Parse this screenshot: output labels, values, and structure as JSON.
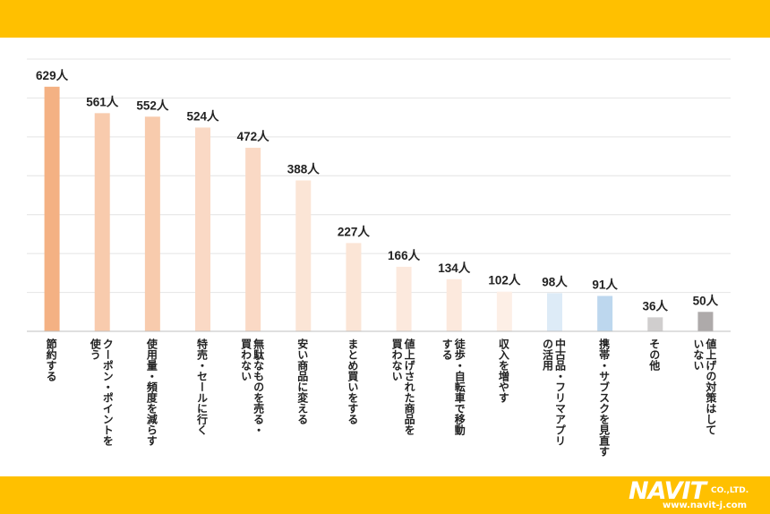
{
  "chart_data": {
    "type": "bar",
    "title": "",
    "xlabel": "",
    "ylabel": "",
    "ylim": [
      0,
      700
    ],
    "grid": true,
    "categories": [
      "節約する",
      "クーポン・ポイントを\n使う",
      "使用量・頻度を減らす",
      "特売・セールに行く",
      "無駄なものを売る・\n買わない",
      "安い商品に変える",
      "まとめ買いをする",
      "値上げされた商品を\n買わない",
      "徒歩・自転車で移動\nする",
      "収入を増やす",
      "中古品・フリマアプリ\nの活用",
      "携帯・サブスクを見直す",
      "その他",
      "値上げの対策はして\nいない"
    ],
    "values": [
      629,
      561,
      552,
      524,
      472,
      388,
      227,
      166,
      134,
      102,
      98,
      91,
      36,
      50
    ],
    "value_labels": [
      "629人",
      "561人",
      "552人",
      "524人",
      "472人",
      "388人",
      "227人",
      "166人",
      "134人",
      "102人",
      "98人",
      "91人",
      "36人",
      "50人"
    ],
    "colors": [
      "#F4B183",
      "#F8CBAD",
      "#F8CBAD",
      "#FAD9C5",
      "#FAD9C5",
      "#FBE5D6",
      "#FBE5D6",
      "#FCE9DD",
      "#FCE9DD",
      "#FDEFE6",
      "#DDEBF7",
      "#BDD7EE",
      "#D0CECE",
      "#AEAAAA"
    ]
  },
  "logo": {
    "name": "NAVIT",
    "suffix": "CO.,LTD.",
    "url": "www.navit-j.com"
  }
}
